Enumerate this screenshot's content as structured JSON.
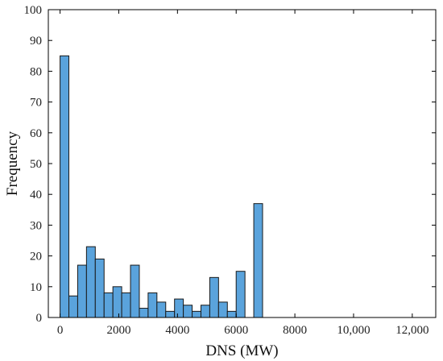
{
  "chart_data": {
    "type": "bar",
    "title": "",
    "xlabel": "DNS (MW)",
    "ylabel": "Frequency",
    "xlim": [
      -400,
      12800
    ],
    "ylim": [
      0,
      100
    ],
    "x_ticks": [
      0,
      2000,
      4000,
      6000,
      8000,
      10000,
      12000
    ],
    "x_tick_labels": [
      "0",
      "2000",
      "4000",
      "6000",
      "8000",
      "10,000",
      "12,000"
    ],
    "y_ticks": [
      0,
      10,
      20,
      30,
      40,
      50,
      60,
      70,
      80,
      90,
      100
    ],
    "y_tick_labels": [
      "0",
      "10",
      "20",
      "30",
      "40",
      "50",
      "60",
      "70",
      "80",
      "90",
      "100"
    ],
    "bin_width": 300,
    "bin_starts": [
      0,
      300,
      600,
      900,
      1200,
      1500,
      1800,
      2100,
      2400,
      2700,
      3000,
      3300,
      3600,
      3900,
      4200,
      4500,
      4800,
      5100,
      5400,
      5700,
      6000,
      6300,
      6600
    ],
    "values": [
      85,
      7,
      17,
      23,
      19,
      8,
      10,
      8,
      17,
      3,
      8,
      5,
      2,
      6,
      4,
      2,
      4,
      13,
      5,
      2,
      15,
      0,
      37
    ],
    "bar_color": "#5aa3dc",
    "edge_color": "#1a1a1a",
    "grid": false,
    "legend": "none"
  }
}
